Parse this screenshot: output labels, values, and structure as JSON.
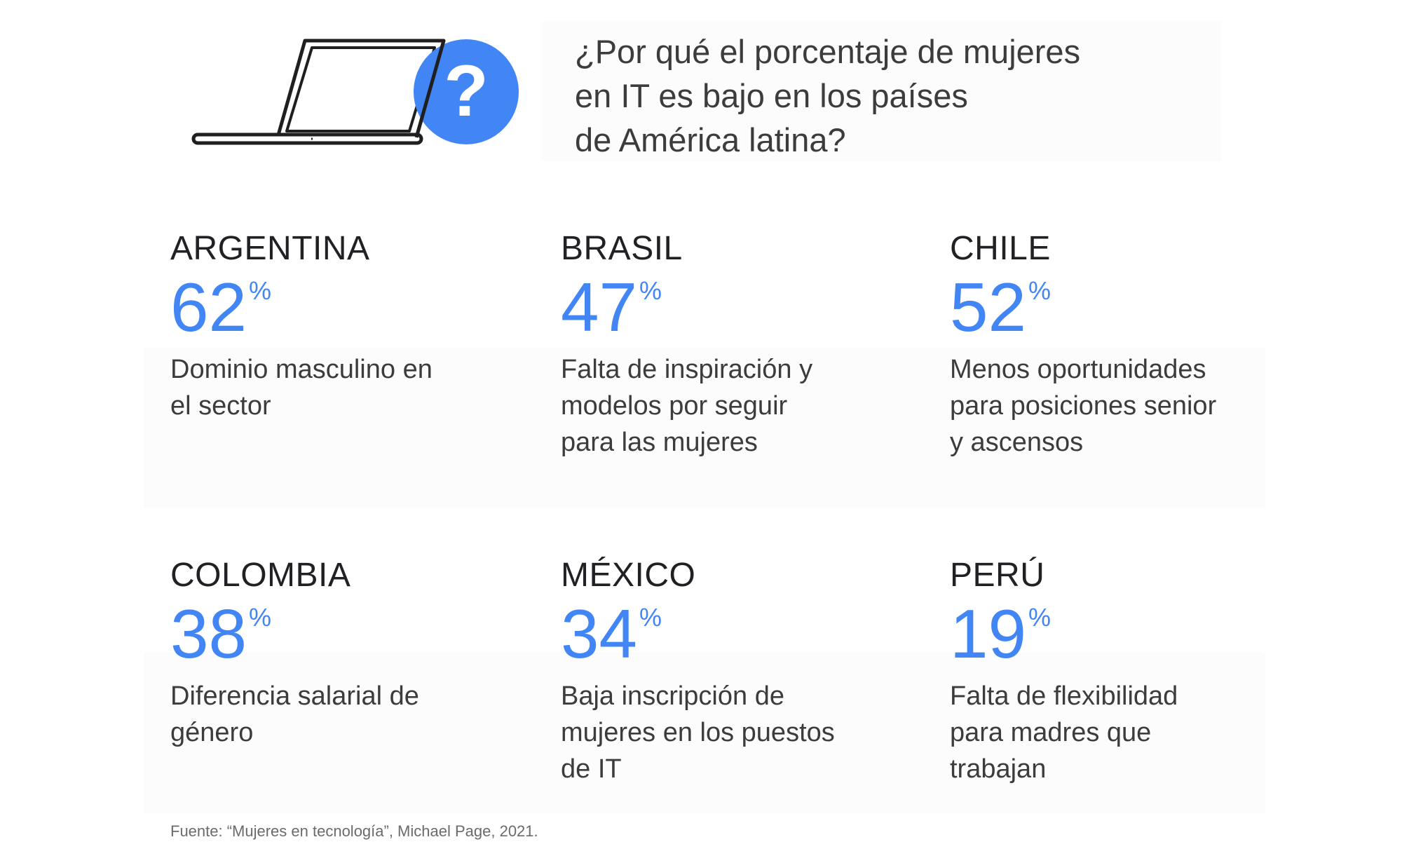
{
  "header": {
    "title_lines": [
      "¿Por qué el porcentaje de mujeres",
      "en IT es bajo en los países",
      "de América latina?"
    ],
    "icons": [
      "laptop-icon",
      "question-mark-icon"
    ],
    "accent_color": "#4285f4"
  },
  "cards": [
    {
      "country": "ARGENTINA",
      "value": "62",
      "unit": "%",
      "desc_lines": [
        "Dominio masculino en",
        "el sector"
      ]
    },
    {
      "country": "BRASIL",
      "value": "47",
      "unit": "%",
      "desc_lines": [
        "Falta de inspiración y",
        "modelos por seguir",
        "para las mujeres"
      ]
    },
    {
      "country": "CHILE",
      "value": "52",
      "unit": "%",
      "desc_lines": [
        "Menos oportunidades",
        "para posiciones senior",
        "y ascensos"
      ]
    },
    {
      "country": "COLOMBIA",
      "value": "38",
      "unit": "%",
      "desc_lines": [
        "Diferencia salarial de",
        "género"
      ]
    },
    {
      "country": "MÉXICO",
      "value": "34",
      "unit": "%",
      "desc_lines": [
        "Baja inscripción de",
        "mujeres en los puestos",
        "de IT"
      ]
    },
    {
      "country": "PERÚ",
      "value": "19",
      "unit": "%",
      "desc_lines": [
        "Falta de flexibilidad",
        "para madres que",
        "trabajan"
      ]
    }
  ],
  "source": "Fuente: “Mujeres en tecnología”, Michael Page, 2021."
}
